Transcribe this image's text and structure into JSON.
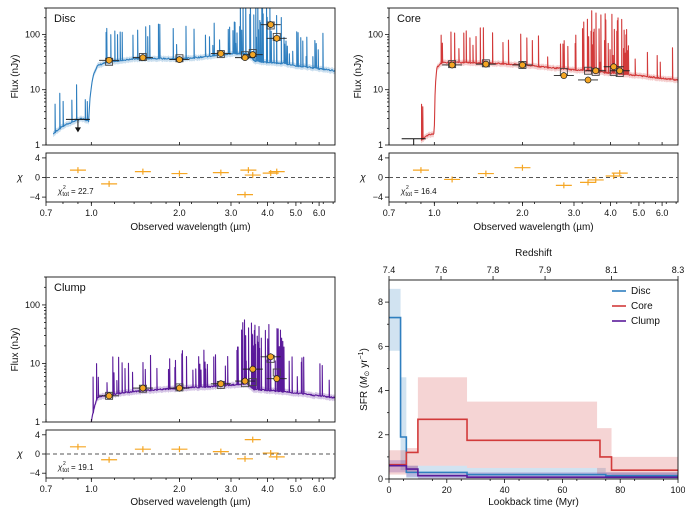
{
  "chart_data": [
    {
      "type": "line",
      "panel": "sed",
      "title": "Disc",
      "color": "#2f7fbf",
      "ylabel": "Flux (nJy)",
      "xlabel": "Observed wavelength (µm)",
      "xlim": [
        0.7,
        6.8
      ],
      "ylim": [
        1,
        300
      ],
      "xticks": [
        0.7,
        1.0,
        2.0,
        3.0,
        4.0,
        5.0,
        6.0
      ],
      "xtick_labels": [
        "0.7",
        "1.0",
        "2.0",
        "3.0",
        "4.0",
        "5.0",
        "6.0"
      ],
      "yticks": [
        1,
        10,
        100
      ],
      "ytick_labels": [
        "1",
        "10",
        "100"
      ],
      "model": {
        "x": [
          0.74,
          0.8,
          0.86,
          0.92,
          0.98,
          1.02,
          1.05,
          1.1,
          1.2,
          1.4,
          1.6,
          2.0,
          2.5,
          3.0,
          3.4,
          3.6,
          4.0,
          4.5,
          5.0,
          6.0,
          6.8
        ],
        "y": [
          1.6,
          2.2,
          2.6,
          3.0,
          2.7,
          20,
          27,
          30,
          33,
          36,
          37,
          36,
          40,
          45,
          45,
          33,
          31,
          30,
          27,
          24,
          22
        ]
      },
      "photometry": {
        "x": [
          0.9,
          1.15,
          1.5,
          2.0,
          2.77,
          3.35,
          3.56,
          4.1,
          4.3
        ],
        "obs": [
          null,
          34,
          38,
          35,
          45,
          38,
          43,
          150,
          85
        ],
        "model": [
          null,
          32,
          39,
          37,
          44,
          42,
          46,
          145,
          90
        ]
      },
      "upper_limit": {
        "x": 0.9,
        "y": 2.9
      },
      "chi": {
        "x": [
          0.9,
          1.15,
          1.5,
          2.0,
          2.77,
          3.35,
          3.44,
          3.56,
          4.1,
          4.3
        ],
        "y": [
          1.5,
          -1.3,
          1.2,
          0.8,
          1.0,
          -3.5,
          1.5,
          0.5,
          0.9,
          1.2
        ]
      },
      "chi_label_main": "χ",
      "chi_label_sub": "tot",
      "chi_label_value": "= 22.7",
      "chi_ylabel": "χ",
      "chi_yticks": [
        "4",
        "0",
        "−4"
      ]
    },
    {
      "type": "line",
      "panel": "sed",
      "title": "Core",
      "color": "#d23a3a",
      "ylabel": "Flux (nJy)",
      "xlabel": "Observed wavelength (µm)",
      "xlim": [
        0.7,
        6.8
      ],
      "ylim": [
        1,
        300
      ],
      "xticks": [
        0.7,
        1.0,
        2.0,
        3.0,
        4.0,
        5.0,
        6.0
      ],
      "xtick_labels": [
        "0.7",
        "1.0",
        "2.0",
        "3.0",
        "4.0",
        "5.0",
        "6.0"
      ],
      "yticks": [
        1,
        10,
        100
      ],
      "ytick_labels": [
        "1",
        "10",
        "100"
      ],
      "model": {
        "x": [
          0.9,
          0.95,
          1.0,
          1.02,
          1.05,
          1.1,
          1.3,
          1.6,
          2.0,
          2.5,
          3.0,
          3.4,
          3.6,
          4.0,
          4.5,
          5.0,
          6.0,
          6.8
        ],
        "y": [
          1.2,
          1.5,
          1.6,
          25,
          30,
          31,
          31,
          30,
          28,
          25,
          23,
          22,
          21,
          20,
          19,
          18,
          16,
          15
        ]
      },
      "photometry": {
        "x": [
          1.15,
          1.5,
          2.0,
          2.77,
          3.35,
          3.56,
          4.1,
          4.3
        ],
        "obs": [
          28,
          29,
          28,
          18,
          15,
          22,
          26,
          22
        ],
        "model": [
          29,
          30,
          28,
          21,
          22,
          21,
          21,
          20
        ]
      },
      "upper_limit": {
        "x": 0.85,
        "y": 1.3
      },
      "chi": {
        "x": [
          0.9,
          1.15,
          1.5,
          2.0,
          2.77,
          3.35,
          3.56,
          4.1,
          4.3
        ],
        "y": [
          1.5,
          -0.4,
          0.8,
          2.0,
          -1.6,
          -1.0,
          -0.5,
          0.3,
          0.9
        ]
      },
      "chi_label_main": "χ",
      "chi_label_sub": "tot",
      "chi_label_value": "= 16.4",
      "chi_ylabel": "χ",
      "chi_yticks": [
        "4",
        "0",
        "−4"
      ]
    },
    {
      "type": "line",
      "panel": "sed",
      "title": "Clump",
      "color": "#5a1a9a",
      "ylabel": "Flux (nJy)",
      "xlabel": "Observed wavelength (µm)",
      "xlim": [
        0.7,
        6.8
      ],
      "ylim": [
        1,
        300
      ],
      "xticks": [
        0.7,
        1.0,
        2.0,
        3.0,
        4.0,
        5.0,
        6.0
      ],
      "xtick_labels": [
        "0.7",
        "1.0",
        "2.0",
        "3.0",
        "4.0",
        "5.0",
        "6.0"
      ],
      "yticks": [
        1,
        10,
        100
      ],
      "ytick_labels": [
        "1",
        "10",
        "100"
      ],
      "model": {
        "x": [
          1.0,
          1.03,
          1.05,
          1.1,
          1.3,
          1.6,
          2.0,
          2.5,
          3.0,
          3.4,
          3.6,
          4.0,
          4.5,
          5.0,
          6.0,
          6.8
        ],
        "y": [
          1.0,
          2.0,
          2.6,
          2.8,
          3.2,
          3.5,
          3.8,
          4.0,
          4.3,
          4.5,
          3.6,
          3.5,
          3.3,
          3.1,
          2.8,
          2.6
        ]
      },
      "photometry": {
        "x": [
          1.15,
          1.5,
          2.0,
          2.77,
          3.35,
          3.56,
          4.1,
          4.3
        ],
        "obs": [
          2.8,
          3.8,
          3.8,
          4.5,
          5.0,
          8.0,
          13.0,
          5.5
        ],
        "model": [
          2.8,
          3.7,
          3.9,
          4.3,
          4.6,
          4.8,
          12.0,
          7.0
        ]
      },
      "chi": {
        "x": [
          0.9,
          1.15,
          1.5,
          2.0,
          2.77,
          3.35,
          3.56,
          4.1,
          4.3
        ],
        "y": [
          1.5,
          -1.2,
          1.0,
          1.0,
          0.5,
          -1.0,
          3.0,
          0.2,
          -0.6
        ]
      },
      "chi_label_main": "χ",
      "chi_label_sub": "tot",
      "chi_label_value": "= 19.1",
      "chi_ylabel": "χ",
      "chi_yticks": [
        "4",
        "0",
        "−4"
      ]
    },
    {
      "type": "line",
      "panel": "sfh",
      "xlabel": "Lookback time (Myr)",
      "ylabel_main": "SFR (",
      "ylabel_unit": "M",
      "ylabel_sun": "⊙",
      "ylabel_rest": " yr",
      "ylabel_exp": "−1",
      "ylabel_close": ")",
      "xlim": [
        0,
        100
      ],
      "ylim": [
        0,
        9
      ],
      "xticks": [
        0,
        20,
        40,
        60,
        80,
        100
      ],
      "xtick_labels": [
        "0",
        "20",
        "40",
        "60",
        "80",
        "100"
      ],
      "yticks": [
        0,
        2,
        4,
        6,
        8
      ],
      "ytick_labels": [
        "0",
        "2",
        "4",
        "6",
        "8"
      ],
      "top_axis_label": "Redshift",
      "top_ticks": [
        {
          "t": 0,
          "label": "7.4"
        },
        {
          "t": 18,
          "label": "7.6"
        },
        {
          "t": 36,
          "label": "7.8"
        },
        {
          "t": 54,
          "label": "7.9"
        },
        {
          "t": 77,
          "label": "8.1"
        },
        {
          "t": 100,
          "label": "8.3"
        }
      ],
      "legend": [
        "Disc",
        "Core",
        "Clump"
      ],
      "series": [
        {
          "name": "Disc",
          "color": "#2f7fbf",
          "steps": [
            [
              0,
              4,
              7.3
            ],
            [
              4,
              6,
              1.9
            ],
            [
              6,
              10,
              0.3
            ],
            [
              10,
              27,
              0.3
            ],
            [
              27,
              75,
              0.2
            ],
            [
              75,
              100,
              0.15
            ]
          ],
          "band": [
            [
              0,
              4,
              5.8,
              8.6
            ],
            [
              4,
              6,
              0.4,
              4.6
            ],
            [
              6,
              27,
              0.05,
              0.6
            ],
            [
              27,
              75,
              0.05,
              0.5
            ],
            [
              75,
              100,
              0.02,
              0.3
            ]
          ]
        },
        {
          "name": "Core",
          "color": "#d23a3a",
          "steps": [
            [
              0,
              6,
              0.65
            ],
            [
              6,
              10,
              1.2
            ],
            [
              10,
              27,
              2.7
            ],
            [
              27,
              73,
              1.75
            ],
            [
              73,
              77,
              1.0
            ],
            [
              77,
              100,
              0.4
            ]
          ],
          "band": [
            [
              0,
              6,
              0.2,
              1.3
            ],
            [
              6,
              10,
              0.3,
              1.4
            ],
            [
              10,
              27,
              0.6,
              4.6
            ],
            [
              27,
              72,
              0.5,
              3.5
            ],
            [
              72,
              77,
              0.2,
              2.3
            ],
            [
              77,
              100,
              0.1,
              1.0
            ]
          ]
        },
        {
          "name": "Clump",
          "color": "#5a1a9a",
          "steps": [
            [
              0,
              6,
              0.6
            ],
            [
              6,
              10,
              0.45
            ],
            [
              10,
              27,
              0.15
            ],
            [
              27,
              100,
              0.08
            ]
          ],
          "band": [
            [
              0,
              6,
              0.3,
              0.85
            ],
            [
              6,
              10,
              0.1,
              0.6
            ],
            [
              10,
              100,
              0.02,
              0.3
            ]
          ]
        }
      ]
    }
  ]
}
